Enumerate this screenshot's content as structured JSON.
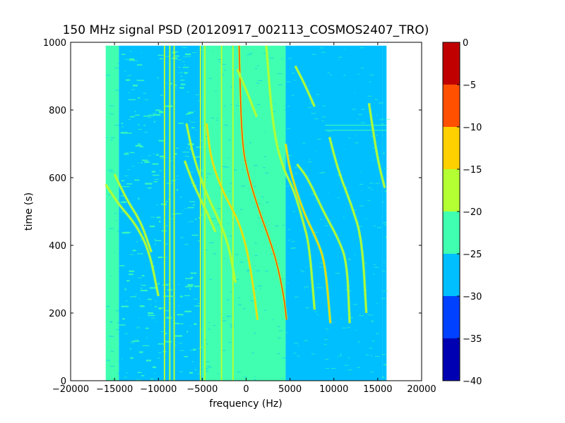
{
  "chart_data": {
    "type": "heatmap",
    "title": "150 MHz signal PSD (20120917_002113_COSMOS2407_TRO)",
    "xlabel": "frequency (Hz)",
    "ylabel": "time (s)",
    "xlim": [
      -20000,
      20000
    ],
    "ylim": [
      0,
      1000
    ],
    "xticks": [
      -20000,
      -15000,
      -10000,
      -5000,
      0,
      5000,
      10000,
      15000,
      20000
    ],
    "xtick_labels": [
      "−20000",
      "−15000",
      "−10000",
      "−5000",
      "0",
      "5000",
      "10000",
      "15000",
      "20000"
    ],
    "yticks": [
      0,
      200,
      400,
      600,
      800,
      1000
    ],
    "ytick_labels": [
      "0",
      "200",
      "400",
      "600",
      "800",
      "1000"
    ],
    "data_extent": {
      "x": [
        -16000,
        16000
      ],
      "y": [
        0,
        990
      ]
    },
    "colorbar": {
      "levels": [
        -40,
        -35,
        -30,
        -25,
        -20,
        -15,
        -10,
        -5,
        0
      ],
      "tick_labels": [
        "−40",
        "−35",
        "−30",
        "−25",
        "−20",
        "−15",
        "−10",
        "−5",
        "0"
      ],
      "colors": [
        "#0000b3",
        "#0040ff",
        "#00bfff",
        "#40ffb0",
        "#b3ff33",
        "#ffd000",
        "#ff5000",
        "#c00000"
      ]
    },
    "background_regions": [
      {
        "x": [
          -16000,
          -14500
        ],
        "level_color": "#40ffb0"
      },
      {
        "x": [
          -14500,
          -5000
        ],
        "level_color": "#00bfff",
        "mixed_with": "#40ffb0"
      },
      {
        "x": [
          -5000,
          4500
        ],
        "level_color": "#40ffb0"
      },
      {
        "x": [
          4500,
          15500
        ],
        "level_color": "#00bfff"
      },
      {
        "x": [
          15500,
          16000
        ],
        "level_color": "#00bfff",
        "mixed_with": "#40ffb0"
      }
    ],
    "vertical_lines": [
      {
        "x": -9300,
        "y": [
          0,
          990
        ],
        "color": "#b3ff33"
      },
      {
        "x": -8700,
        "y": [
          0,
          990
        ],
        "color": "#b3ff33"
      },
      {
        "x": -8200,
        "y": [
          0,
          990
        ],
        "color": "#b3ff33"
      },
      {
        "x": -5200,
        "y": [
          0,
          990
        ],
        "color": "#b3ff33"
      },
      {
        "x": -4700,
        "y": [
          0,
          990
        ],
        "color": "#b3ff33"
      },
      {
        "x": -2800,
        "y": [
          0,
          990
        ],
        "color": "#b3ff33"
      },
      {
        "x": -1500,
        "y": [
          0,
          990
        ],
        "color": "#b3ff33"
      }
    ],
    "doppler_traces": [
      {
        "name": "trace-1",
        "color": "#ff5000",
        "points": [
          [
            -800,
            990
          ],
          [
            -500,
            700
          ],
          [
            300,
            600
          ],
          [
            1500,
            500
          ],
          [
            2500,
            430
          ],
          [
            3500,
            350
          ],
          [
            4300,
            250
          ],
          [
            4600,
            180
          ]
        ]
      },
      {
        "name": "trace-2",
        "color": "#ffd000",
        "points": [
          [
            -4500,
            760
          ],
          [
            -4000,
            650
          ],
          [
            -2500,
            550
          ],
          [
            -1000,
            480
          ],
          [
            0,
            400
          ],
          [
            700,
            300
          ],
          [
            1300,
            180
          ]
        ]
      },
      {
        "name": "trace-3",
        "color": "#ffd000",
        "points": [
          [
            4500,
            700
          ],
          [
            5000,
            620
          ],
          [
            6500,
            500
          ],
          [
            8000,
            420
          ],
          [
            9000,
            350
          ],
          [
            9600,
            170
          ]
        ]
      },
      {
        "name": "trace-4",
        "color": "#b3ff33",
        "points": [
          [
            5800,
            640
          ],
          [
            7000,
            600
          ],
          [
            8800,
            500
          ],
          [
            10500,
            420
          ],
          [
            11500,
            350
          ],
          [
            11800,
            170
          ]
        ]
      },
      {
        "name": "trace-5",
        "color": "#b3ff33",
        "points": [
          [
            9500,
            720
          ],
          [
            10500,
            620
          ],
          [
            12000,
            520
          ],
          [
            13200,
            420
          ],
          [
            13700,
            200
          ]
        ]
      },
      {
        "name": "trace-6",
        "color": "#b3ff33",
        "points": [
          [
            -6800,
            760
          ],
          [
            -6000,
            660
          ],
          [
            -4500,
            550
          ],
          [
            -3000,
            470
          ],
          [
            -2000,
            400
          ],
          [
            -1200,
            290
          ]
        ]
      },
      {
        "name": "trace-7",
        "color": "#b3ff33",
        "points": [
          [
            2300,
            990
          ],
          [
            3000,
            760
          ],
          [
            4000,
            640
          ],
          [
            5500,
            560
          ],
          [
            6500,
            470
          ],
          [
            7200,
            400
          ],
          [
            7800,
            210
          ]
        ]
      },
      {
        "name": "trace-8",
        "color": "#b3ff33",
        "points": [
          [
            -7000,
            650
          ],
          [
            -6000,
            580
          ],
          [
            -4500,
            500
          ],
          [
            -3500,
            440
          ]
        ]
      },
      {
        "name": "trace-9",
        "color": "#b3ff33",
        "points": [
          [
            -16000,
            580
          ],
          [
            -14500,
            520
          ],
          [
            -12500,
            460
          ],
          [
            -11000,
            380
          ],
          [
            -10000,
            250
          ]
        ]
      },
      {
        "name": "trace-10",
        "color": "#b3ff33",
        "points": [
          [
            -15000,
            610
          ],
          [
            -13500,
            530
          ],
          [
            -12000,
            470
          ],
          [
            -10800,
            380
          ]
        ]
      },
      {
        "name": "trace-11",
        "color": "#b3ff33",
        "points": [
          [
            14000,
            820
          ],
          [
            14700,
            700
          ],
          [
            15200,
            630
          ],
          [
            15800,
            570
          ]
        ]
      },
      {
        "name": "trace-12",
        "color": "#b3ff33",
        "points": [
          [
            -1000,
            920
          ],
          [
            0,
            860
          ],
          [
            1200,
            780
          ]
        ]
      },
      {
        "name": "trace-13",
        "color": "#b3ff33",
        "points": [
          [
            5600,
            930
          ],
          [
            6600,
            880
          ],
          [
            7800,
            810
          ]
        ]
      }
    ],
    "horizontal_lines": [
      {
        "y": 740,
        "x": [
          9000,
          16000
        ],
        "color": "#40ffb0"
      },
      {
        "y": 755,
        "x": [
          9000,
          16000
        ],
        "color": "#40ffb0"
      }
    ]
  }
}
